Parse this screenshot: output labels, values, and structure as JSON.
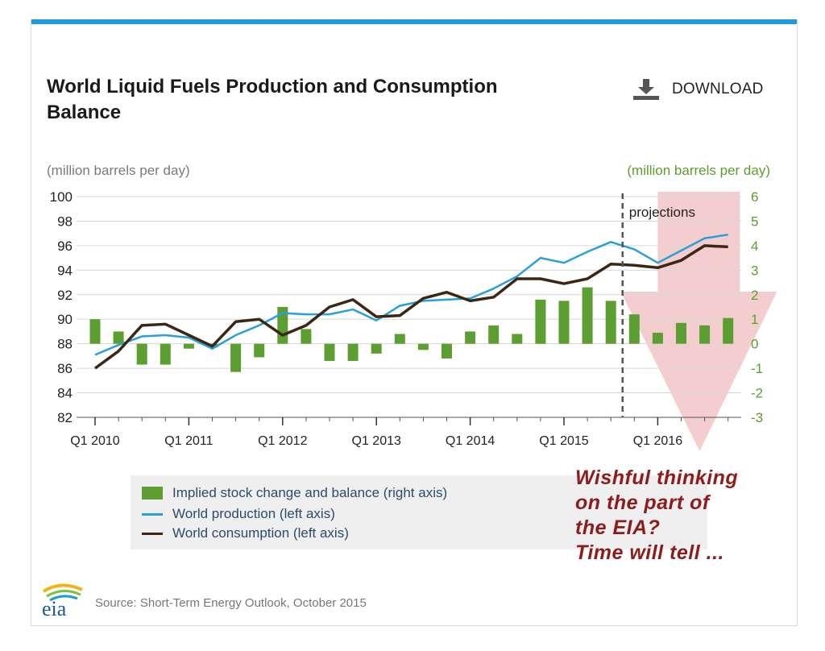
{
  "header": {
    "title_line1": "World Liquid Fuels Production and Consumption",
    "title_line2": "Balance",
    "download_label": "DOWNLOAD"
  },
  "axes": {
    "left_unit": "(million barrels per day)",
    "right_unit": "(million barrels per day)"
  },
  "legend": {
    "bars": "Implied stock change and balance (right axis)",
    "production": "World production (left axis)",
    "consumption": "World consumption (left axis)"
  },
  "annotation": {
    "line1": "Wishful thinking",
    "line2": "on the part of",
    "line3": "the EIA?",
    "line4": "Time will tell ..."
  },
  "source": "Source: Short-Term Energy Outlook, October 2015",
  "logo_text": "eia",
  "colors": {
    "production": "#2b9fd8",
    "consumption": "#3b2714",
    "bars": "#5c9e32",
    "arrow": "#f3c9c9",
    "annotation": "#8d1c1c",
    "right_axis": "#5a9e2f"
  },
  "chart_data": {
    "type": "bar+line",
    "title": "World Liquid Fuels Production and Consumption Balance",
    "x_tick_labels": [
      "Q1 2010",
      "Q1 2011",
      "Q1 2012",
      "Q1 2013",
      "Q1 2014",
      "Q1 2015",
      "Q1 2016"
    ],
    "x_start_index": 0,
    "quarters": 28,
    "y_left": {
      "min": 82,
      "max": 100,
      "step": 2,
      "ticks": [
        100,
        98,
        96,
        94,
        92,
        90,
        88,
        86,
        84,
        82
      ]
    },
    "y_right": {
      "min": -3,
      "max": 6,
      "step": 1,
      "ticks": [
        6,
        5,
        4,
        3,
        2,
        1,
        0,
        -1,
        -2,
        -3
      ]
    },
    "projection_start_index": 22.5,
    "projection_label": "projections",
    "series": [
      {
        "name": "World production (left axis)",
        "axis": "left",
        "type": "line",
        "values": [
          87.1,
          87.9,
          88.6,
          88.7,
          88.5,
          87.6,
          88.7,
          89.5,
          90.5,
          90.4,
          90.4,
          90.8,
          89.9,
          91.1,
          91.5,
          91.6,
          91.7,
          92.5,
          93.5,
          95.0,
          94.6,
          95.5,
          96.3,
          95.7,
          94.6,
          95.6,
          96.6,
          96.9
        ]
      },
      {
        "name": "World consumption (left axis)",
        "axis": "left",
        "type": "line",
        "values": [
          86.0,
          87.4,
          89.5,
          89.6,
          88.7,
          87.8,
          89.8,
          90.0,
          88.7,
          89.5,
          91.0,
          91.6,
          90.2,
          90.3,
          91.7,
          92.2,
          91.5,
          91.8,
          93.3,
          93.3,
          92.9,
          93.3,
          94.5,
          94.4,
          94.2,
          94.8,
          96.0,
          95.9
        ]
      },
      {
        "name": "Implied stock change and balance (right axis)",
        "axis": "right",
        "type": "bar",
        "values": [
          1.0,
          0.5,
          -0.85,
          -0.85,
          -0.2,
          -0.15,
          -1.15,
          -0.55,
          1.5,
          0.6,
          -0.7,
          -0.7,
          -0.4,
          0.4,
          -0.25,
          -0.6,
          0.5,
          0.75,
          0.4,
          1.8,
          1.75,
          2.3,
          1.75,
          1.2,
          0.45,
          0.85,
          0.75,
          1.05
        ]
      }
    ]
  }
}
